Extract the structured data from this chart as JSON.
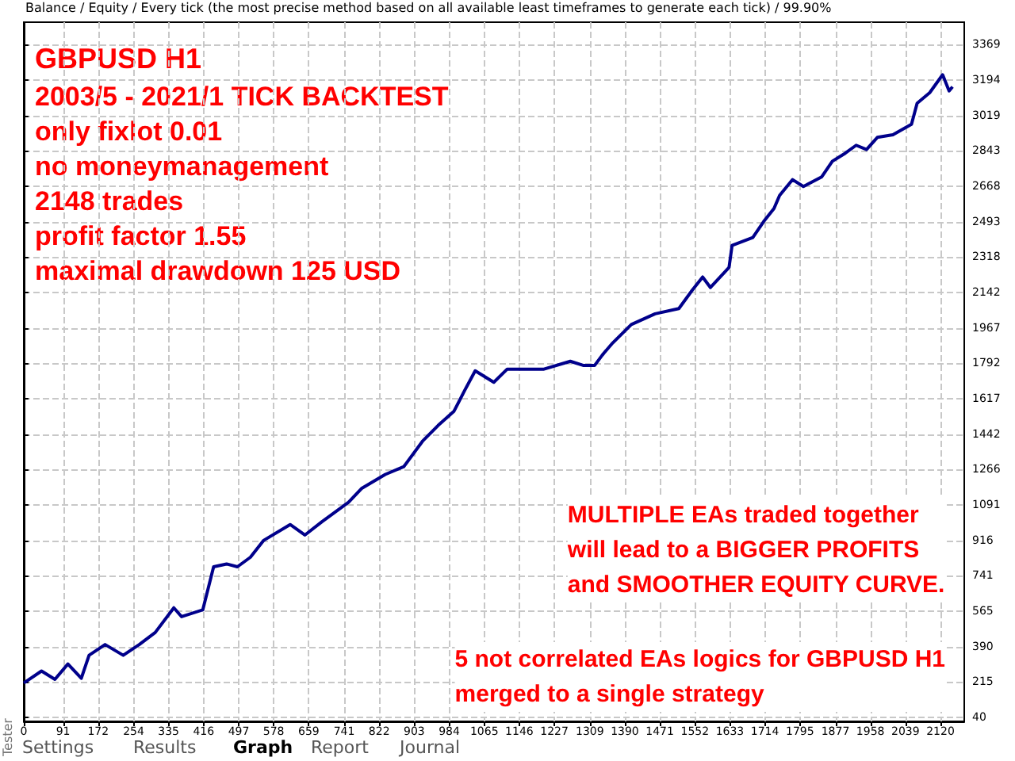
{
  "chart_data": {
    "type": "line",
    "title": "GBPUSD H1",
    "subtitle": "Balance / Equity / Every tick (the most precise method based on all available least timeframes to generate each tick) / 99.90%",
    "annotations": [
      "2003/5 - 2021/1 TICK BACKTEST\nonly fixlot 0.01\nno moneymanagement\n2148 trades\nprofit factor 1.55\nmaximal drawdown 125 USD",
      "MULTIPLE EAs traded together\nwill lead to a BIGGER PROFITS\nand SMOOTHER EQUITY CURVE.",
      "5 not correlated EAs logics for GBPUSD H1\nmerged to a single strategy",
      "Settings",
      "Results",
      "Graph",
      "Report",
      "Journal",
      "Tester"
    ],
    "x": [
      0,
      41,
      72,
      102,
      133,
      151,
      188,
      230,
      267,
      304,
      347,
      365,
      414,
      439,
      469,
      494,
      524,
      555,
      616,
      650,
      689,
      751,
      781,
      836,
      879,
      922,
      958,
      995,
      1020,
      1044,
      1087,
      1118,
      1203,
      1264,
      1295,
      1320,
      1338,
      1362,
      1405,
      1460,
      1515,
      1546,
      1570,
      1588,
      1631,
      1638,
      1686,
      1711,
      1735,
      1748,
      1778,
      1803,
      1845,
      1870,
      1900,
      1925,
      1949,
      1974,
      2010,
      2053,
      2066,
      2095,
      2125,
      2140,
      2148
    ],
    "series": [
      {
        "color": "#00008b",
        "values": [
          210,
          269,
          228,
          304,
          233,
          347,
          400,
          347,
          400,
          460,
          582,
          538,
          572,
          785,
          799,
          785,
          832,
          916,
          994,
          942,
          1007,
          1104,
          1172,
          1242,
          1281,
          1406,
          1484,
          1555,
          1659,
          1755,
          1698,
          1763,
          1763,
          1802,
          1781,
          1781,
          1833,
          1893,
          1984,
          2037,
          2063,
          2154,
          2219,
          2167,
          2266,
          2375,
          2414,
          2493,
          2558,
          2623,
          2701,
          2667,
          2714,
          2792,
          2832,
          2871,
          2850,
          2910,
          2923,
          2975,
          3079,
          3131,
          3220,
          3140,
          3160
        ]
      }
    ],
    "xlim": [
      0,
      2175
    ],
    "xticks": [
      0,
      91,
      172,
      254,
      335,
      416,
      497,
      578,
      659,
      741,
      822,
      903,
      984,
      1065,
      1146,
      1227,
      1309,
      1390,
      1471,
      1552,
      1633,
      1714,
      1795,
      1877,
      1958,
      2039,
      2120
    ],
    "ylim": [
      20,
      3480
    ],
    "yticks": [
      40,
      215,
      390,
      565,
      741,
      916,
      1091,
      1266,
      1442,
      1617,
      1792,
      1967,
      2142,
      2318,
      2493,
      2668,
      2843,
      3019,
      3194,
      3369
    ],
    "grid": true,
    "marker": "none",
    "line_style": "solid"
  }
}
